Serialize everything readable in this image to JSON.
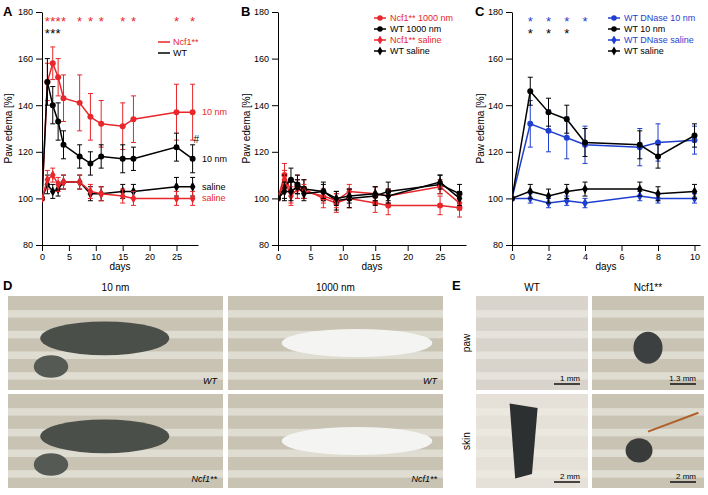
{
  "chart_data": [
    {
      "type": "line",
      "panel": "A",
      "y_label": "Paw edema [%]",
      "x_label": "days",
      "xlim": [
        0,
        29
      ],
      "xticks": [
        0,
        5,
        10,
        15,
        20,
        25
      ],
      "ylim": [
        80,
        180
      ],
      "yticks": [
        80,
        100,
        120,
        140,
        160,
        180
      ],
      "x": [
        0,
        1,
        2,
        3,
        4,
        7,
        9,
        11,
        15,
        17,
        25,
        28
      ],
      "legend": "top-right",
      "legend_entries": [
        {
          "name": "Ncf1**",
          "color": "#e8262b"
        },
        {
          "name": "WT",
          "color": "#000000"
        }
      ],
      "series": [
        {
          "name": "10 nm",
          "color": "#e8262b",
          "marker": "circle",
          "values": [
            100,
            150,
            158,
            152,
            143,
            141,
            135,
            132,
            131,
            134,
            137,
            137
          ],
          "errors": [
            0,
            8,
            7,
            8,
            10,
            12,
            10,
            10,
            10,
            10,
            12,
            12
          ]
        },
        {
          "name": "10 nm",
          "color": "#000000",
          "marker": "circle",
          "values": [
            100,
            150,
            140,
            133,
            123,
            118,
            115,
            118,
            117,
            117,
            122,
            117
          ],
          "errors": [
            0,
            10,
            8,
            8,
            6,
            5,
            5,
            5,
            6,
            5,
            6,
            6
          ]
        },
        {
          "name": "saline",
          "color": "#000000",
          "marker": "diamond",
          "values": [
            100,
            106,
            103,
            104,
            107,
            107,
            102,
            102,
            103,
            103,
            105,
            105
          ],
          "errors": [
            0,
            4,
            3,
            3,
            3,
            3,
            3,
            3,
            3,
            3,
            4,
            4
          ]
        },
        {
          "name": "saline",
          "color": "#e8262b",
          "marker": "diamond",
          "values": [
            100,
            108,
            110,
            106,
            107,
            107,
            103,
            102,
            101,
            100,
            100,
            100
          ],
          "errors": [
            0,
            4,
            3,
            3,
            3,
            3,
            3,
            3,
            3,
            3,
            3,
            3
          ]
        }
      ],
      "annotations": [
        {
          "x": 1,
          "y": 176,
          "text": "*",
          "color": "#e8262b"
        },
        {
          "x": 2,
          "y": 176,
          "text": "*",
          "color": "#e8262b"
        },
        {
          "x": 3,
          "y": 176,
          "text": "*",
          "color": "#e8262b"
        },
        {
          "x": 4,
          "y": 176,
          "text": "*",
          "color": "#e8262b"
        },
        {
          "x": 7,
          "y": 176,
          "text": "*",
          "color": "#e8262b"
        },
        {
          "x": 9,
          "y": 176,
          "text": "*",
          "color": "#e8262b"
        },
        {
          "x": 11,
          "y": 176,
          "text": "*",
          "color": "#e8262b"
        },
        {
          "x": 15,
          "y": 176,
          "text": "*",
          "color": "#e8262b"
        },
        {
          "x": 17,
          "y": 176,
          "text": "*",
          "color": "#e8262b"
        },
        {
          "x": 25,
          "y": 176,
          "text": "*",
          "color": "#e8262b"
        },
        {
          "x": 28,
          "y": 176,
          "text": "*",
          "color": "#e8262b"
        },
        {
          "x": 1,
          "y": 171,
          "text": "*",
          "color": "#000000"
        },
        {
          "x": 2,
          "y": 171,
          "text": "*",
          "color": "#000000"
        },
        {
          "x": 3,
          "y": 171,
          "text": "*",
          "color": "#000000"
        },
        {
          "x": 28.7,
          "y": 126,
          "text": "#",
          "color": "#000000"
        }
      ]
    },
    {
      "type": "line",
      "panel": "B",
      "y_label": "Paw edema [%]",
      "x_label": "days",
      "xlim": [
        0,
        29
      ],
      "xticks": [
        0,
        5,
        10,
        15,
        20,
        25
      ],
      "ylim": [
        80,
        180
      ],
      "yticks": [
        80,
        100,
        120,
        140,
        160,
        180
      ],
      "x": [
        0,
        1,
        2,
        3,
        4,
        7,
        9,
        11,
        15,
        17,
        25,
        28
      ],
      "legend": "top-right",
      "series": [
        {
          "name": "Ncf1** 1000 nm",
          "color": "#e8262b",
          "marker": "circle",
          "values": [
            100,
            110,
            103,
            105,
            104,
            100,
            98,
            100,
            98,
            97,
            97,
            96
          ],
          "errors": [
            0,
            5,
            5,
            5,
            4,
            4,
            4,
            4,
            4,
            4,
            4,
            4
          ]
        },
        {
          "name": "WT 1000 nm",
          "color": "#000000",
          "marker": "circle",
          "values": [
            100,
            105,
            108,
            106,
            104,
            103,
            99,
            100,
            101,
            103,
            106,
            102
          ],
          "errors": [
            0,
            5,
            5,
            4,
            4,
            4,
            4,
            4,
            4,
            4,
            4,
            4
          ]
        },
        {
          "name": "Ncf1** saline",
          "color": "#e8262b",
          "marker": "diamond",
          "values": [
            100,
            108,
            101,
            104,
            103,
            101,
            99,
            103,
            102,
            101,
            105,
            98
          ],
          "errors": [
            0,
            4,
            4,
            4,
            3,
            3,
            3,
            3,
            3,
            3,
            3,
            3
          ]
        },
        {
          "name": "WT saline",
          "color": "#000000",
          "marker": "diamond",
          "values": [
            100,
            103,
            103,
            105,
            102,
            103,
            100,
            101,
            102,
            101,
            107,
            100
          ],
          "errors": [
            0,
            4,
            4,
            3,
            3,
            3,
            3,
            3,
            3,
            3,
            3,
            3
          ]
        }
      ]
    },
    {
      "type": "line",
      "panel": "C",
      "y_label": "Paw edema [%]",
      "x_label": "days",
      "xlim": [
        0,
        10.3
      ],
      "xticks": [
        0,
        2,
        4,
        6,
        8,
        10
      ],
      "ylim": [
        80,
        180
      ],
      "yticks": [
        80,
        100,
        120,
        140,
        160,
        180
      ],
      "x": [
        0,
        1,
        2,
        3,
        4,
        7,
        8,
        10
      ],
      "legend": "top-right",
      "series": [
        {
          "name": "WT DNase 10 nm",
          "color": "#1f3fcf",
          "marker": "circle",
          "values": [
            100,
            132,
            129,
            126,
            123,
            122,
            124,
            125
          ],
          "errors": [
            0,
            10,
            9,
            9,
            8,
            8,
            8,
            6
          ]
        },
        {
          "name": "WT 10 nm",
          "color": "#000000",
          "marker": "circle",
          "values": [
            100,
            146,
            137,
            134,
            124,
            123,
            118,
            127
          ],
          "errors": [
            0,
            6,
            6,
            6,
            6,
            6,
            5,
            5
          ]
        },
        {
          "name": "WT DNase saline",
          "color": "#1f3fcf",
          "marker": "diamond",
          "values": [
            100,
            100,
            98,
            99,
            98,
            101,
            100,
            100
          ],
          "errors": [
            0,
            2,
            2,
            2,
            2,
            2,
            2,
            2
          ]
        },
        {
          "name": "WT saline",
          "color": "#000000",
          "marker": "diamond",
          "values": [
            100,
            103,
            101,
            103,
            104,
            104,
            102,
            103
          ],
          "errors": [
            0,
            3,
            3,
            3,
            3,
            3,
            3,
            3
          ]
        }
      ],
      "annotations": [
        {
          "x": 1,
          "y": 176,
          "text": "*",
          "color": "#1f3fcf"
        },
        {
          "x": 2,
          "y": 176,
          "text": "*",
          "color": "#1f3fcf"
        },
        {
          "x": 3,
          "y": 176,
          "text": "*",
          "color": "#1f3fcf"
        },
        {
          "x": 4,
          "y": 176,
          "text": "*",
          "color": "#1f3fcf"
        },
        {
          "x": 1,
          "y": 171,
          "text": "*",
          "color": "#000000"
        },
        {
          "x": 2,
          "y": 171,
          "text": "*",
          "color": "#000000"
        },
        {
          "x": 3,
          "y": 171,
          "text": "*",
          "color": "#000000"
        }
      ]
    }
  ],
  "photo_panels": [
    {
      "panel": "D",
      "column_labels": [
        "10 nm",
        "1000 nm"
      ],
      "image_labels": [
        [
          "WT",
          "WT"
        ],
        [
          "Ncf1**",
          "Ncf1**"
        ]
      ]
    },
    {
      "panel": "E",
      "column_labels": [
        "WT",
        "Ncf1**"
      ],
      "row_labels": [
        "paw",
        "skin"
      ],
      "scale_bars": [
        [
          "1 mm",
          "1.3 mm"
        ],
        [
          "2 mm",
          "2 mm"
        ]
      ]
    }
  ]
}
